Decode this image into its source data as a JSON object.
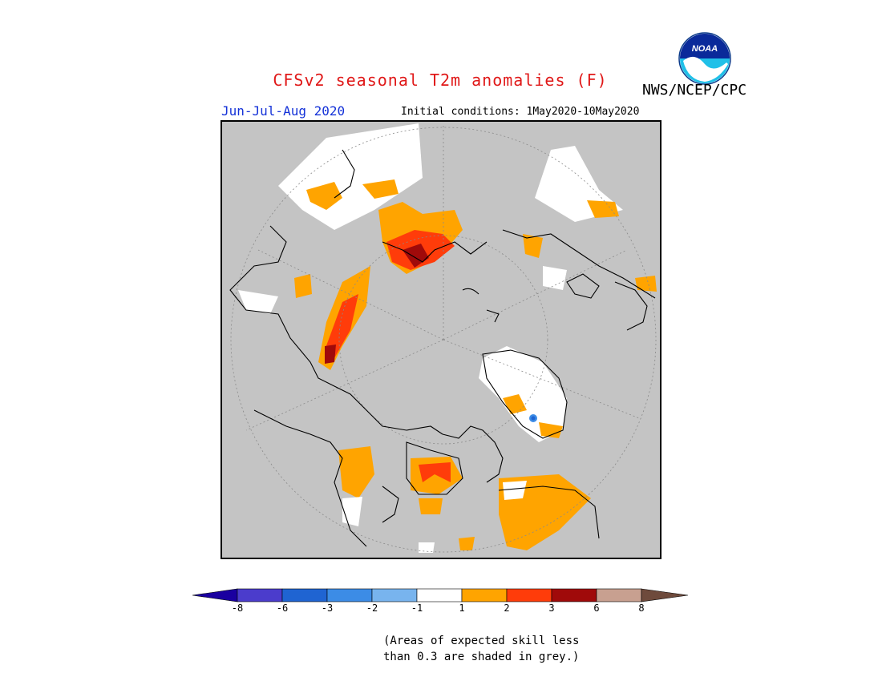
{
  "title": "CFSv2 seasonal T2m anomalies (F)",
  "agency": "NWS/NCEP/CPC",
  "logo_text": "NOAA",
  "season": "Jun-Jul-Aug 2020",
  "initial_conditions": "Initial conditions: 1May2020-10May2020",
  "colorbar": {
    "colors": [
      "#1a00a0",
      "#4b3ccc",
      "#1f64d2",
      "#3c8ce6",
      "#78b4ee",
      "#ffffff",
      "#ffa400",
      "#ff3c0a",
      "#a00a0a",
      "#c8a090",
      "#6e4a3c"
    ],
    "ticks": [
      "-8",
      "-6",
      "-3",
      "-2",
      "-1",
      "1",
      "2",
      "3",
      "6",
      "8"
    ]
  },
  "note_line1": "(Areas of expected skill less",
  "note_line2": "than 0.3 are shaded in grey.)",
  "map": {
    "projection": "north-polar-stereographic",
    "background_color": "#c4c4c4",
    "legend_categories": {
      "near_normal": "#ffffff",
      "plus_1_to_2": "#ffa400",
      "plus_2_to_3": "#ff3c0a",
      "plus_3_to_6": "#a00a0a",
      "minus_3_to_2": "#3c8ce6"
    }
  }
}
